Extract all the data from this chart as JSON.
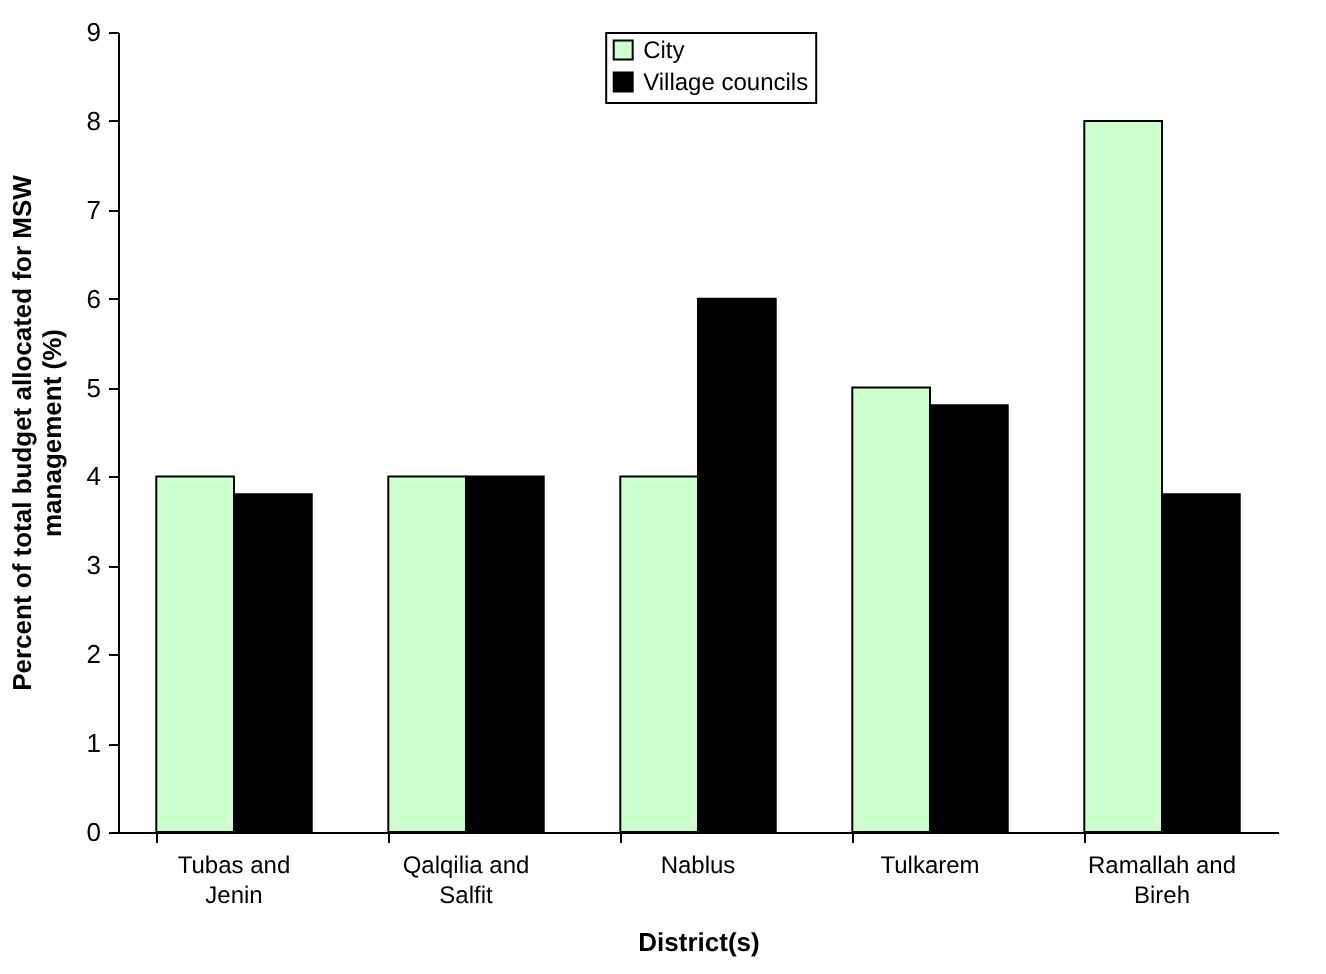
{
  "chart_data": {
    "type": "bar",
    "xlabel": "District(s)",
    "ylabel": "Percent of total budget allocated for MSW management (%)",
    "categories": [
      "Tubas and Jenin",
      "Qalqilia and Salfit",
      "Nablus",
      "Tulkarem",
      "Ramallah and Bireh"
    ],
    "series": [
      {
        "name": "City",
        "color": "#ccffcc",
        "values": [
          4,
          4,
          4,
          5,
          8
        ]
      },
      {
        "name": "Village councils",
        "color": "#000000",
        "values": [
          3.8,
          4,
          6,
          4.8,
          3.8
        ]
      }
    ],
    "ylim": [
      0,
      9
    ],
    "yticks": [
      0,
      1,
      2,
      3,
      4,
      5,
      6,
      7,
      8,
      9
    ],
    "grid": false,
    "legend": "top"
  }
}
